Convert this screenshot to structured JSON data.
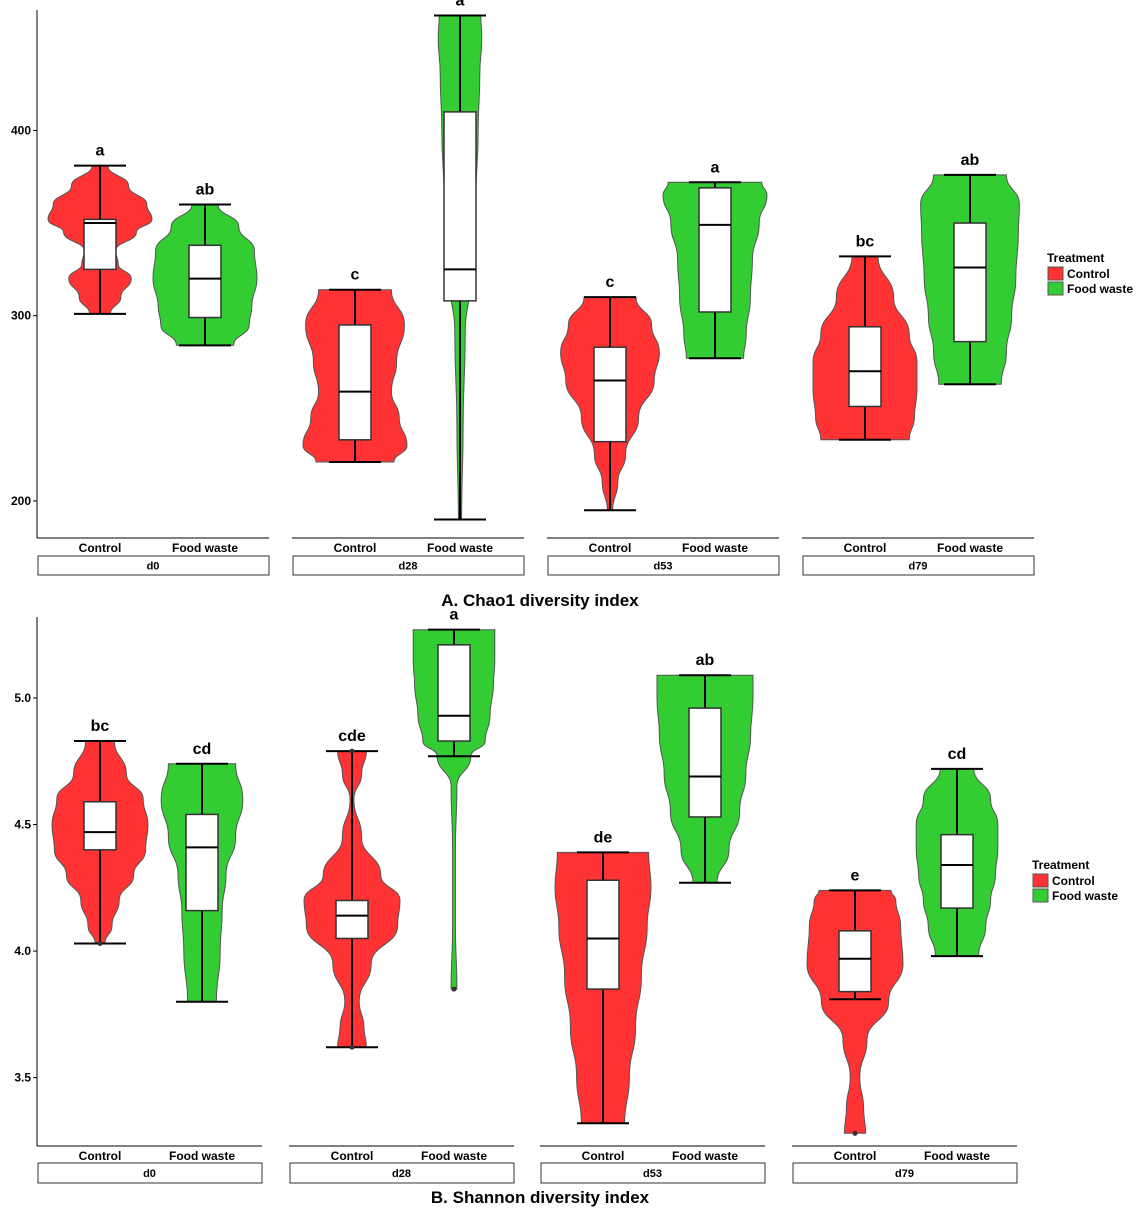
{
  "chart_data": [
    {
      "type": "violin",
      "caption": "A. Chao1 diversity index",
      "ylim": [
        180,
        465
      ],
      "yticks": [
        200,
        300,
        400
      ],
      "categories": [
        "Control",
        "Food waste"
      ],
      "legend": {
        "title": "Treatment",
        "entries": [
          "Control",
          "Food waste"
        ],
        "colors": [
          "#ff3333",
          "#33cc33"
        ]
      },
      "facets": [
        {
          "label": "d0",
          "groups": [
            {
              "treatment": "Control",
              "min": 301,
              "q1": 325,
              "median": 350,
              "q3": 352,
              "max": 381,
              "letter": "a",
              "density": [
                [
                  301,
                  0.2
                ],
                [
                  310,
                  0.4
                ],
                [
                  320,
                  0.6
                ],
                [
                  328,
                  0.35
                ],
                [
                  335,
                  0.3
                ],
                [
                  345,
                  0.7
                ],
                [
                  352,
                  1.0
                ],
                [
                  360,
                  0.9
                ],
                [
                  370,
                  0.55
                ],
                [
                  381,
                  0.15
                ]
              ]
            },
            {
              "treatment": "Food waste",
              "min": 284,
              "q1": 299,
              "median": 320,
              "q3": 338,
              "max": 360,
              "letter": "ab",
              "density": [
                [
                  284,
                  0.55
                ],
                [
                  295,
                  0.85
                ],
                [
                  305,
                  0.9
                ],
                [
                  320,
                  1.0
                ],
                [
                  335,
                  0.95
                ],
                [
                  348,
                  0.65
                ],
                [
                  360,
                  0.25
                ]
              ]
            }
          ]
        },
        {
          "label": "d28",
          "groups": [
            {
              "treatment": "Control",
              "min": 221,
              "q1": 233,
              "median": 259,
              "q3": 295,
              "max": 314,
              "letter": "c",
              "density": [
                [
                  221,
                  0.75
                ],
                [
                  230,
                  1.0
                ],
                [
                  245,
                  0.85
                ],
                [
                  259,
                  0.7
                ],
                [
                  275,
                  0.8
                ],
                [
                  295,
                  0.95
                ],
                [
                  314,
                  0.7
                ]
              ]
            },
            {
              "treatment": "Food waste",
              "min": 190,
              "q1": 308,
              "median": 325,
              "q3": 410,
              "max": 462,
              "letter": "a",
              "density": [
                [
                  190,
                  0.03
                ],
                [
                  240,
                  0.06
                ],
                [
                  290,
                  0.1
                ],
                [
                  320,
                  0.2
                ],
                [
                  360,
                  0.3
                ],
                [
                  400,
                  0.35
                ],
                [
                  430,
                  0.38
                ],
                [
                  450,
                  0.42
                ],
                [
                  462,
                  0.4
                ]
              ]
            }
          ]
        },
        {
          "label": "d53",
          "groups": [
            {
              "treatment": "Control",
              "min": 195,
              "q1": 232,
              "median": 265,
              "q3": 283,
              "max": 310,
              "letter": "c",
              "density": [
                [
                  195,
                  0.05
                ],
                [
                  210,
                  0.15
                ],
                [
                  225,
                  0.3
                ],
                [
                  245,
                  0.55
                ],
                [
                  265,
                  0.85
                ],
                [
                  280,
                  0.95
                ],
                [
                  295,
                  0.8
                ],
                [
                  310,
                  0.5
                ]
              ]
            },
            {
              "treatment": "Food waste",
              "min": 277,
              "q1": 302,
              "median": 349,
              "q3": 369,
              "max": 372,
              "letter": "a",
              "density": [
                [
                  277,
                  0.55
                ],
                [
                  290,
                  0.6
                ],
                [
                  310,
                  0.68
                ],
                [
                  330,
                  0.72
                ],
                [
                  350,
                  0.85
                ],
                [
                  365,
                  1.0
                ],
                [
                  372,
                  0.9
                ]
              ]
            }
          ]
        },
        {
          "label": "d79",
          "groups": [
            {
              "treatment": "Control",
              "min": 233,
              "q1": 251,
              "median": 270,
              "q3": 294,
              "max": 332,
              "letter": "bc",
              "density": [
                [
                  233,
                  0.85
                ],
                [
                  245,
                  0.95
                ],
                [
                  260,
                  1.0
                ],
                [
                  275,
                  1.0
                ],
                [
                  290,
                  0.85
                ],
                [
                  310,
                  0.55
                ],
                [
                  332,
                  0.25
                ]
              ]
            },
            {
              "treatment": "Food waste",
              "min": 263,
              "q1": 286,
              "median": 326,
              "q3": 350,
              "max": 376,
              "letter": "ab",
              "density": [
                [
                  263,
                  0.6
                ],
                [
                  280,
                  0.7
                ],
                [
                  300,
                  0.8
                ],
                [
                  320,
                  0.88
                ],
                [
                  345,
                  0.93
                ],
                [
                  360,
                  0.95
                ],
                [
                  376,
                  0.7
                ]
              ]
            }
          ]
        }
      ]
    },
    {
      "type": "violin",
      "caption": "B. Shannon diversity index",
      "ylim": [
        3.23,
        5.32
      ],
      "yticks": [
        3.5,
        4.0,
        4.5,
        5.0
      ],
      "categories": [
        "Control",
        "Food waste"
      ],
      "legend": {
        "title": "Treatment",
        "entries": [
          "Control",
          "Food waste"
        ],
        "colors": [
          "#ff3333",
          "#33cc33"
        ]
      },
      "facets": [
        {
          "label": "d0",
          "groups": [
            {
              "treatment": "Control",
              "min": 4.03,
              "q1": 4.4,
              "median": 4.47,
              "q3": 4.59,
              "max": 4.83,
              "letter": "bc",
              "outliers": [
                4.03
              ],
              "density": [
                [
                  4.03,
                  0.1
                ],
                [
                  4.1,
                  0.25
                ],
                [
                  4.2,
                  0.4
                ],
                [
                  4.3,
                  0.7
                ],
                [
                  4.4,
                  0.95
                ],
                [
                  4.5,
                  1.0
                ],
                [
                  4.6,
                  0.9
                ],
                [
                  4.7,
                  0.55
                ],
                [
                  4.83,
                  0.3
                ]
              ]
            },
            {
              "treatment": "Food waste",
              "min": 3.8,
              "q1": 4.16,
              "median": 4.41,
              "q3": 4.54,
              "max": 4.74,
              "letter": "cd",
              "density": [
                [
                  3.8,
                  0.3
                ],
                [
                  4.0,
                  0.38
                ],
                [
                  4.16,
                  0.42
                ],
                [
                  4.3,
                  0.5
                ],
                [
                  4.45,
                  0.7
                ],
                [
                  4.6,
                  0.85
                ],
                [
                  4.74,
                  0.7
                ]
              ]
            }
          ]
        },
        {
          "label": "d28",
          "groups": [
            {
              "treatment": "Control",
              "min": 3.62,
              "q1": 4.05,
              "median": 4.14,
              "q3": 4.2,
              "max": 4.79,
              "letter": "cde",
              "outliers": [
                3.62,
                4.79
              ],
              "density": [
                [
                  3.62,
                  0.3
                ],
                [
                  3.7,
                  0.25
                ],
                [
                  3.8,
                  0.15
                ],
                [
                  3.95,
                  0.4
                ],
                [
                  4.1,
                  0.95
                ],
                [
                  4.2,
                  1.0
                ],
                [
                  4.3,
                  0.6
                ],
                [
                  4.45,
                  0.2
                ],
                [
                  4.6,
                  0.04
                ],
                [
                  4.7,
                  0.2
                ],
                [
                  4.79,
                  0.3
                ]
              ]
            },
            {
              "treatment": "Food waste",
              "min": 4.77,
              "q1": 4.83,
              "median": 4.93,
              "q3": 5.21,
              "max": 5.27,
              "letter": "a",
              "outliers": [
                3.85
              ],
              "density": [
                [
                  3.85,
                  0.06
                ],
                [
                  4.1,
                  0.03
                ],
                [
                  4.4,
                  0.03
                ],
                [
                  4.65,
                  0.06
                ],
                [
                  4.77,
                  0.35
                ],
                [
                  4.83,
                  0.65
                ],
                [
                  4.93,
                  0.75
                ],
                [
                  5.05,
                  0.82
                ],
                [
                  5.15,
                  0.85
                ],
                [
                  5.27,
                  0.85
                ]
              ]
            }
          ]
        },
        {
          "label": "d53",
          "groups": [
            {
              "treatment": "Control",
              "min": 3.32,
              "q1": 3.85,
              "median": 4.05,
              "q3": 4.28,
              "max": 4.39,
              "letter": "de",
              "density": [
                [
                  3.32,
                  0.45
                ],
                [
                  3.5,
                  0.55
                ],
                [
                  3.7,
                  0.68
                ],
                [
                  3.9,
                  0.8
                ],
                [
                  4.1,
                  0.92
                ],
                [
                  4.25,
                  1.0
                ],
                [
                  4.39,
                  0.95
                ]
              ]
            },
            {
              "treatment": "Food waste",
              "min": 4.27,
              "q1": 4.53,
              "median": 4.69,
              "q3": 4.96,
              "max": 5.09,
              "letter": "ab",
              "density": [
                [
                  4.27,
                  0.25
                ],
                [
                  4.4,
                  0.5
                ],
                [
                  4.55,
                  0.72
                ],
                [
                  4.7,
                  0.85
                ],
                [
                  4.85,
                  0.95
                ],
                [
                  5.0,
                  1.0
                ],
                [
                  5.09,
                  1.0
                ]
              ]
            }
          ]
        },
        {
          "label": "d79",
          "groups": [
            {
              "treatment": "Control",
              "min": 3.81,
              "q1": 3.84,
              "median": 3.97,
              "q3": 4.08,
              "max": 4.24,
              "letter": "e",
              "outliers": [
                3.28
              ],
              "density": [
                [
                  3.28,
                  0.22
                ],
                [
                  3.38,
                  0.18
                ],
                [
                  3.5,
                  0.1
                ],
                [
                  3.65,
                  0.25
                ],
                [
                  3.8,
                  0.7
                ],
                [
                  3.95,
                  1.0
                ],
                [
                  4.1,
                  0.95
                ],
                [
                  4.2,
                  0.85
                ],
                [
                  4.24,
                  0.75
                ]
              ]
            },
            {
              "treatment": "Food waste",
              "min": 3.98,
              "q1": 4.17,
              "median": 4.34,
              "q3": 4.46,
              "max": 4.72,
              "letter": "cd",
              "density": [
                [
                  3.98,
                  0.45
                ],
                [
                  4.1,
                  0.6
                ],
                [
                  4.2,
                  0.7
                ],
                [
                  4.3,
                  0.8
                ],
                [
                  4.4,
                  0.85
                ],
                [
                  4.5,
                  0.85
                ],
                [
                  4.6,
                  0.7
                ],
                [
                  4.72,
                  0.35
                ]
              ]
            }
          ]
        }
      ]
    }
  ]
}
